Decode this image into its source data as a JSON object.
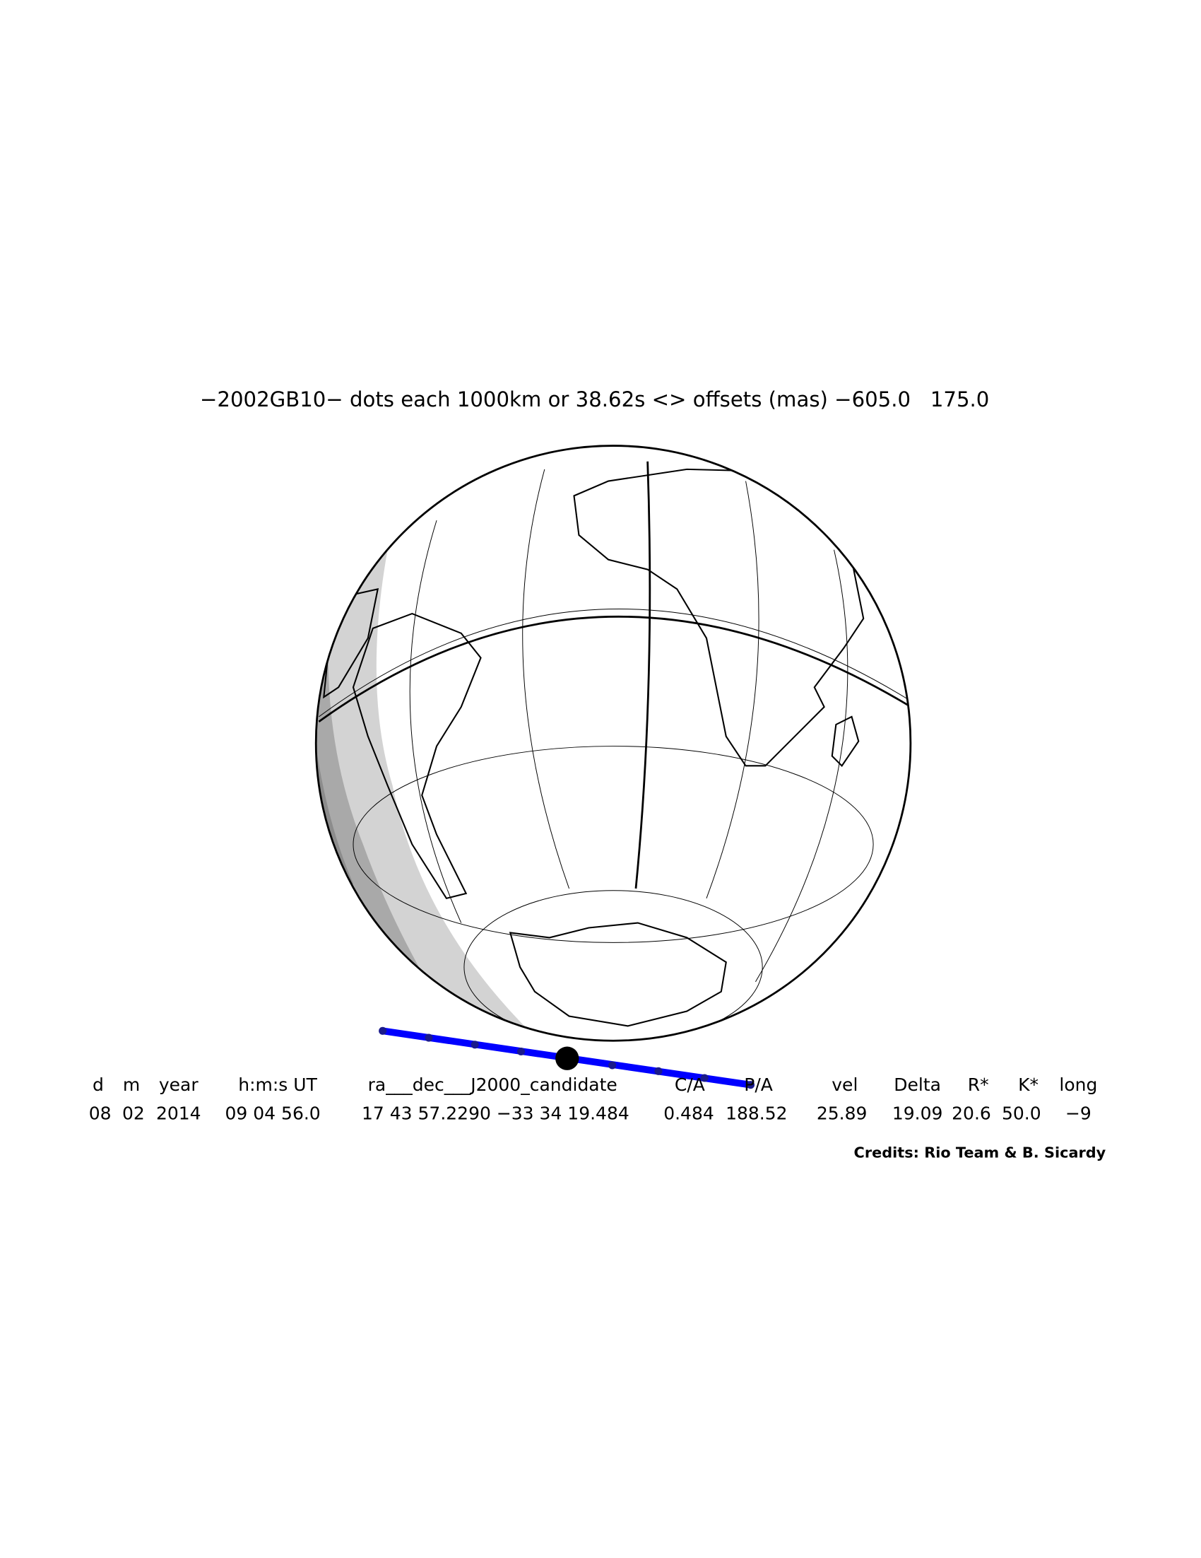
{
  "title": "−2002GB10− dots each 1000km or 38.62s <> offsets (mas) −605.0   175.0",
  "table": {
    "headers": [
      "d",
      "m",
      "year",
      "h:m:s UT",
      "ra___dec___J2000_candidate",
      "C/A",
      "P/A",
      "vel",
      "Delta",
      "R*",
      "K*",
      "long"
    ],
    "rows": [
      [
        "08",
        "02",
        "2014",
        "09 04 56.0",
        "17 43 57.2290 −33 34 19.484",
        "0.484",
        "188.52",
        "25.89",
        "19.09",
        "20.6",
        "50.0",
        "−9"
      ]
    ]
  },
  "credits": "Credits: Rio Team & B. Sicardy"
}
